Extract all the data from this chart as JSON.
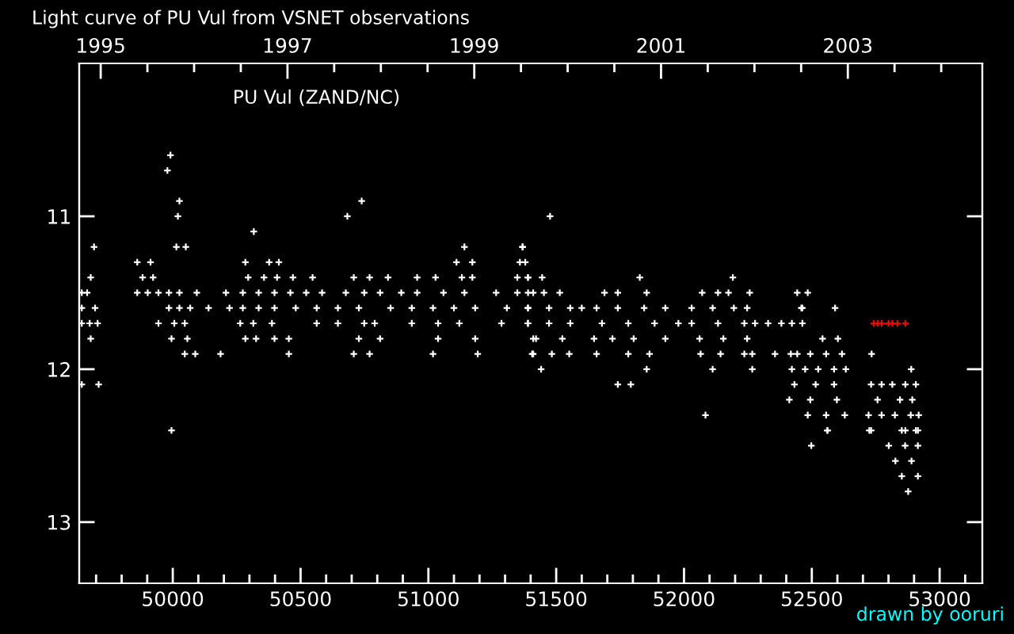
{
  "chart_data": {
    "type": "scatter",
    "title": "Light curve of PU Vul from VSNET observations",
    "annotations": [
      "PU Vul (ZAND/NC)",
      "drawn by ooruri"
    ],
    "marker": "cross",
    "grid": false,
    "xlim": [
      49634,
      53167
    ],
    "ylim": [
      13.4,
      10.0
    ],
    "xticks": [
      {
        "value": 49700,
        "label": null
      },
      {
        "value": 49800,
        "label": null
      },
      {
        "value": 49900,
        "label": null
      },
      50000,
      {
        "value": 50100,
        "label": null
      },
      {
        "value": 50200,
        "label": null
      },
      {
        "value": 50300,
        "label": null
      },
      {
        "value": 50400,
        "label": null
      },
      50500,
      {
        "value": 50600,
        "label": null
      },
      {
        "value": 50700,
        "label": null
      },
      {
        "value": 50800,
        "label": null
      },
      {
        "value": 50900,
        "label": null
      },
      51000,
      {
        "value": 51100,
        "label": null
      },
      {
        "value": 51200,
        "label": null
      },
      {
        "value": 51300,
        "label": null
      },
      {
        "value": 51400,
        "label": null
      },
      51500,
      {
        "value": 51600,
        "label": null
      },
      {
        "value": 51700,
        "label": null
      },
      {
        "value": 51800,
        "label": null
      },
      {
        "value": 51900,
        "label": null
      },
      52000,
      {
        "value": 52100,
        "label": null
      },
      {
        "value": 52200,
        "label": null
      },
      {
        "value": 52300,
        "label": null
      },
      {
        "value": 52400,
        "label": null
      },
      52500,
      {
        "value": 52600,
        "label": null
      },
      {
        "value": 52700,
        "label": null
      },
      {
        "value": 52800,
        "label": null
      },
      {
        "value": 52900,
        "label": null
      },
      53000,
      {
        "value": 53100,
        "label": null
      }
    ],
    "yticks": [
      11,
      12,
      13
    ],
    "x2lim": [
      1994.77,
      2004.44
    ],
    "x2ticks": [
      1995,
      {
        "value": 1995.5,
        "label": null
      },
      {
        "value": 1996,
        "label": null
      },
      {
        "value": 1996.5,
        "label": null
      },
      1997,
      {
        "value": 1997.5,
        "label": null
      },
      {
        "value": 1998,
        "label": null
      },
      {
        "value": 1998.5,
        "label": null
      },
      1999,
      {
        "value": 1999.5,
        "label": null
      },
      {
        "value": 2000,
        "label": null
      },
      {
        "value": 2000.5,
        "label": null
      },
      2001,
      {
        "value": 2001.5,
        "label": null
      },
      {
        "value": 2002,
        "label": null
      },
      {
        "value": 2002.5,
        "label": null
      },
      2003,
      {
        "value": 2003.5,
        "label": null
      },
      {
        "value": 2004,
        "label": null
      }
    ],
    "tick_labels": "xy",
    "series": [
      {
        "color": "#ffffff",
        "x": [
          49644,
          49665,
          49644,
          49696,
          49644,
          49675,
          49706,
          49679,
          49692,
          49679,
          49644,
          49710,
          49861,
          49913,
          49882,
          49923,
          49861,
          49902,
          49944,
          49985,
          50026,
          49985,
          50026,
          50068,
          49944,
          50006,
          50047,
          49995,
          50057,
          50047,
          50088,
          49991,
          49979,
          50026,
          50020,
          50014,
          50051,
          49995,
          50094,
          50140,
          50187,
          50208,
          50274,
          50336,
          50398,
          50460,
          50222,
          50274,
          50336,
          50398,
          50264,
          50315,
          50388,
          50284,
          50326,
          50398,
          50454,
          50454,
          50284,
          50377,
          50415,
          50295,
          50357,
          50408,
          50470,
          50547,
          50317,
          50522,
          50584,
          50677,
          50749,
          50811,
          50481,
          50563,
          50646,
          50728,
          50563,
          50646,
          50749,
          50790,
          50728,
          50811,
          50708,
          50770,
          50683,
          50739,
          50708,
          50770,
          50842,
          50894,
          50956,
          51059,
          51141,
          51265,
          51348,
          51410,
          50852,
          50935,
          51018,
          51100,
          51183,
          51307,
          51389,
          50935,
          51038,
          51121,
          51286,
          51389,
          51038,
          51183,
          51410,
          51018,
          51193,
          51410,
          50956,
          51028,
          51131,
          51172,
          51348,
          51389,
          51110,
          51172,
          51358,
          51141,
          51368,
          51369,
          51379,
          51390,
          51445,
          51390,
          51452,
          51514,
          51390,
          51472,
          51555,
          51390,
          51472,
          51555,
          51421,
          51524,
          51406,
          51483,
          51551,
          51441,
          51476,
          51689,
          51741,
          51854,
          51658,
          51741,
          51844,
          51927,
          51600,
          51679,
          51782,
          51885,
          51978,
          51648,
          51720,
          51803,
          51927,
          51658,
          51782,
          51865,
          51854,
          51741,
          51792,
          51827,
          52071,
          52133,
          52174,
          52257,
          52030,
          52112,
          52195,
          52247,
          52030,
          52133,
          52236,
          52278,
          52061,
          52154,
          52247,
          52065,
          52143,
          52236,
          52267,
          52112,
          52267,
          52191,
          52084,
          52329,
          52381,
          52422,
          52463,
          52356,
          52418,
          52443,
          52484,
          52459,
          52542,
          52602,
          52463,
          52422,
          52474,
          52525,
          52587,
          52633,
          52443,
          52494,
          52556,
          52618,
          52432,
          52515,
          52587,
          52412,
          52494,
          52598,
          52484,
          52556,
          52629,
          52561,
          52591,
          52734,
          52732,
          52773,
          52815,
          52866,
          52907,
          52757,
          52845,
          52893,
          52722,
          52773,
          52825,
          52887,
          52918,
          52732,
          52866,
          52907,
          52889,
          52498,
          52801,
          52865,
          52915,
          52827,
          52890,
          52852,
          52915,
          52877,
          52561,
          52725,
          52852,
          52915
        ],
        "values": [
          11.5,
          11.5,
          11.6,
          11.6,
          11.7,
          11.7,
          11.7,
          11.4,
          11.2,
          11.8,
          12.1,
          12.1,
          11.3,
          11.3,
          11.4,
          11.4,
          11.5,
          11.5,
          11.5,
          11.5,
          11.5,
          11.6,
          11.6,
          11.6,
          11.7,
          11.7,
          11.7,
          11.8,
          11.8,
          11.9,
          11.9,
          10.6,
          10.7,
          10.9,
          11.0,
          11.2,
          11.2,
          12.4,
          11.5,
          11.6,
          11.9,
          11.5,
          11.5,
          11.5,
          11.5,
          11.5,
          11.6,
          11.6,
          11.6,
          11.6,
          11.7,
          11.7,
          11.7,
          11.8,
          11.8,
          11.8,
          11.8,
          11.9,
          11.3,
          11.3,
          11.3,
          11.4,
          11.4,
          11.4,
          11.4,
          11.4,
          11.1,
          11.5,
          11.5,
          11.5,
          11.5,
          11.5,
          11.6,
          11.6,
          11.6,
          11.6,
          11.7,
          11.7,
          11.7,
          11.7,
          11.8,
          11.8,
          11.9,
          11.9,
          11.0,
          10.9,
          11.4,
          11.4,
          11.4,
          11.5,
          11.5,
          11.5,
          11.5,
          11.5,
          11.5,
          11.5,
          11.6,
          11.6,
          11.6,
          11.6,
          11.6,
          11.6,
          11.6,
          11.7,
          11.7,
          11.7,
          11.7,
          11.7,
          11.8,
          11.8,
          11.8,
          11.9,
          11.9,
          11.9,
          11.4,
          11.4,
          11.4,
          11.4,
          11.4,
          11.4,
          11.3,
          11.3,
          11.3,
          11.2,
          11.2,
          11.2,
          11.3,
          11.4,
          11.4,
          11.5,
          11.5,
          11.5,
          11.6,
          11.6,
          11.6,
          11.7,
          11.7,
          11.7,
          11.8,
          11.8,
          11.9,
          11.9,
          11.9,
          12.0,
          11.0,
          11.5,
          11.5,
          11.5,
          11.6,
          11.6,
          11.6,
          11.6,
          11.6,
          11.7,
          11.7,
          11.7,
          11.7,
          11.8,
          11.8,
          11.8,
          11.8,
          11.9,
          11.9,
          11.9,
          12.0,
          12.1,
          12.1,
          11.4,
          11.5,
          11.5,
          11.5,
          11.5,
          11.6,
          11.6,
          11.6,
          11.6,
          11.7,
          11.7,
          11.7,
          11.7,
          11.8,
          11.8,
          11.8,
          11.9,
          11.9,
          11.9,
          11.9,
          12.0,
          12.0,
          11.4,
          12.3,
          11.7,
          11.7,
          11.7,
          11.7,
          11.9,
          11.9,
          11.5,
          11.5,
          11.6,
          11.8,
          11.8,
          11.6,
          12.0,
          12.0,
          12.0,
          12.0,
          12.0,
          11.9,
          11.9,
          11.9,
          11.9,
          12.1,
          12.1,
          12.1,
          12.2,
          12.2,
          12.2,
          12.3,
          12.3,
          12.3,
          12.4,
          11.6,
          11.9,
          12.1,
          12.1,
          12.1,
          12.1,
          12.1,
          12.2,
          12.2,
          12.2,
          12.3,
          12.3,
          12.3,
          12.3,
          12.3,
          12.4,
          12.4,
          12.4,
          12.0,
          12.5,
          12.5,
          12.5,
          12.5,
          12.6,
          12.6,
          12.7,
          12.7,
          12.8,
          12.4,
          12.4,
          12.4,
          12.4
        ]
      },
      {
        "color": "#ff0000",
        "x": [
          52742,
          52757,
          52773,
          52800,
          52815,
          52835,
          52866
        ],
        "values": [
          11.7,
          11.7,
          11.7,
          11.7,
          11.7,
          11.7,
          11.7
        ]
      }
    ]
  }
}
